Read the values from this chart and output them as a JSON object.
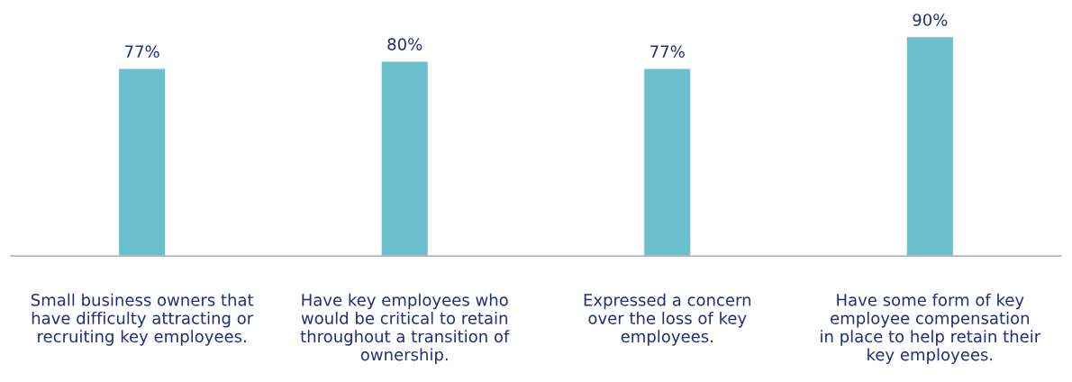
{
  "chart_data": {
    "type": "bar",
    "categories": [
      "Small business owners that\nhave difficulty attracting or\nrecruiting key employees.",
      "Have key employees who\nwould be critical to retain\nthroughout a transition of\nownership.",
      "Expressed a concern\nover the loss of key\nemployees.",
      "Have some form of key\nemployee compensation\nin place to help retain their\nkey employees."
    ],
    "values": [
      77,
      80,
      77,
      90
    ],
    "color": "#6cbfcc",
    "data_labels": true,
    "value_labels": [
      "77%",
      "80%",
      "77%",
      "90%"
    ],
    "grid": false,
    "legend": false,
    "tick_labels": "x"
  }
}
